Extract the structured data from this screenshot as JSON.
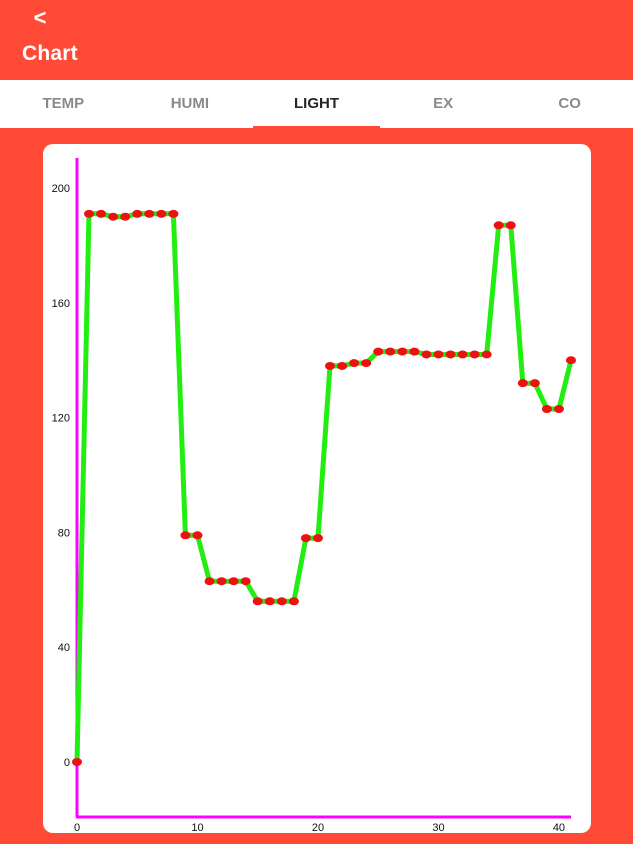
{
  "appbar": {
    "back_icon": "<",
    "title": "Chart"
  },
  "tabs": [
    {
      "label": "TEMP",
      "active": false
    },
    {
      "label": "HUMI",
      "active": false
    },
    {
      "label": "LIGHT",
      "active": true
    },
    {
      "label": "EX",
      "active": false
    },
    {
      "label": "CO",
      "active": false
    }
  ],
  "colors": {
    "appbar": "#ff4b36",
    "axis": "#ff00ff",
    "line": "#22ee11",
    "point": "#ee1111"
  },
  "chart_data": {
    "type": "line",
    "xlim": [
      0,
      41
    ],
    "ylim": [
      -20,
      210
    ],
    "x_ticks": [
      0,
      10,
      20,
      30,
      40
    ],
    "y_ticks": [
      0,
      40,
      80,
      120,
      160,
      200
    ],
    "series": [
      {
        "x": [
          0,
          1,
          2,
          3,
          4,
          5,
          6,
          7,
          8,
          9,
          10,
          11,
          12,
          13,
          14,
          15,
          16,
          17,
          18,
          19,
          20,
          21,
          22,
          23,
          24,
          25,
          26,
          27,
          28,
          29,
          30,
          31,
          32,
          33,
          34,
          35,
          36,
          37,
          38,
          39,
          40,
          41
        ],
        "values": [
          0,
          191,
          191,
          190,
          190,
          191,
          191,
          191,
          191,
          79,
          79,
          63,
          63,
          63,
          63,
          56,
          56,
          56,
          56,
          78,
          78,
          138,
          138,
          139,
          139,
          143,
          143,
          143,
          143,
          142,
          142,
          142,
          142,
          142,
          142,
          187,
          187,
          132,
          132,
          123,
          123,
          140
        ]
      }
    ]
  }
}
